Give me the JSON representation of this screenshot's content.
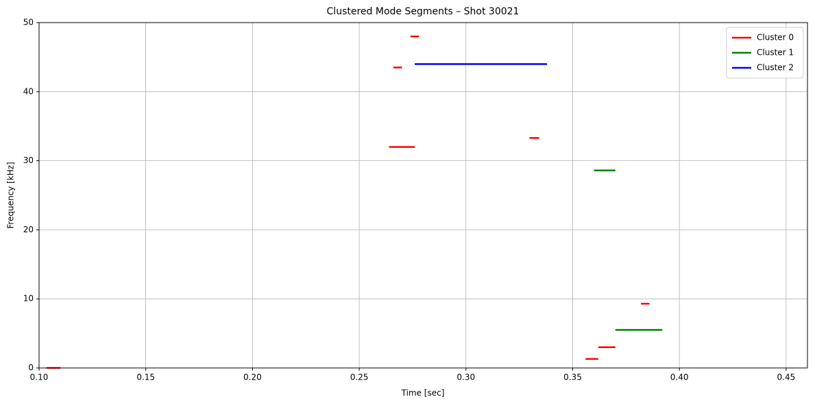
{
  "chart_data": {
    "type": "segments",
    "title": "Clustered Mode Segments – Shot 30021",
    "x_label": "Time [sec]",
    "y_label": "Frequency [kHz]",
    "xlim": [
      0.1,
      0.46
    ],
    "ylim": [
      0,
      50
    ],
    "xticks": [
      {
        "value": 0.1,
        "label": "0.10"
      },
      {
        "value": 0.15,
        "label": "0.15"
      },
      {
        "value": 0.2,
        "label": "0.20"
      },
      {
        "value": 0.25,
        "label": "0.25"
      },
      {
        "value": 0.3,
        "label": "0.30"
      },
      {
        "value": 0.35,
        "label": "0.35"
      },
      {
        "value": 0.4,
        "label": "0.40"
      },
      {
        "value": 0.45,
        "label": "0.45"
      }
    ],
    "yticks": [
      0,
      10,
      20,
      30,
      40,
      50
    ],
    "grid": true,
    "legend": "upper right",
    "series": [
      {
        "name": "Cluster 0",
        "color": "#ff0000",
        "x_start": [
          0.1035,
          0.274,
          0.266,
          0.264,
          0.3298,
          0.356,
          0.362,
          0.382
        ],
        "x_end": [
          0.11,
          0.278,
          0.27,
          0.276,
          0.3343,
          0.362,
          0.37,
          0.386
        ],
        "values": [
          0,
          48.0,
          43.5,
          32.0,
          33.3,
          1.3,
          3.0,
          9.3
        ]
      },
      {
        "name": "Cluster 1",
        "color": "#008000",
        "x_start": [
          0.36,
          0.37
        ],
        "x_end": [
          0.37,
          0.392
        ],
        "values": [
          28.6,
          5.5
        ]
      },
      {
        "name": "Cluster 2",
        "color": "#0000ff",
        "x_start": [
          0.276
        ],
        "x_end": [
          0.338
        ],
        "values": [
          44.0
        ]
      }
    ]
  }
}
